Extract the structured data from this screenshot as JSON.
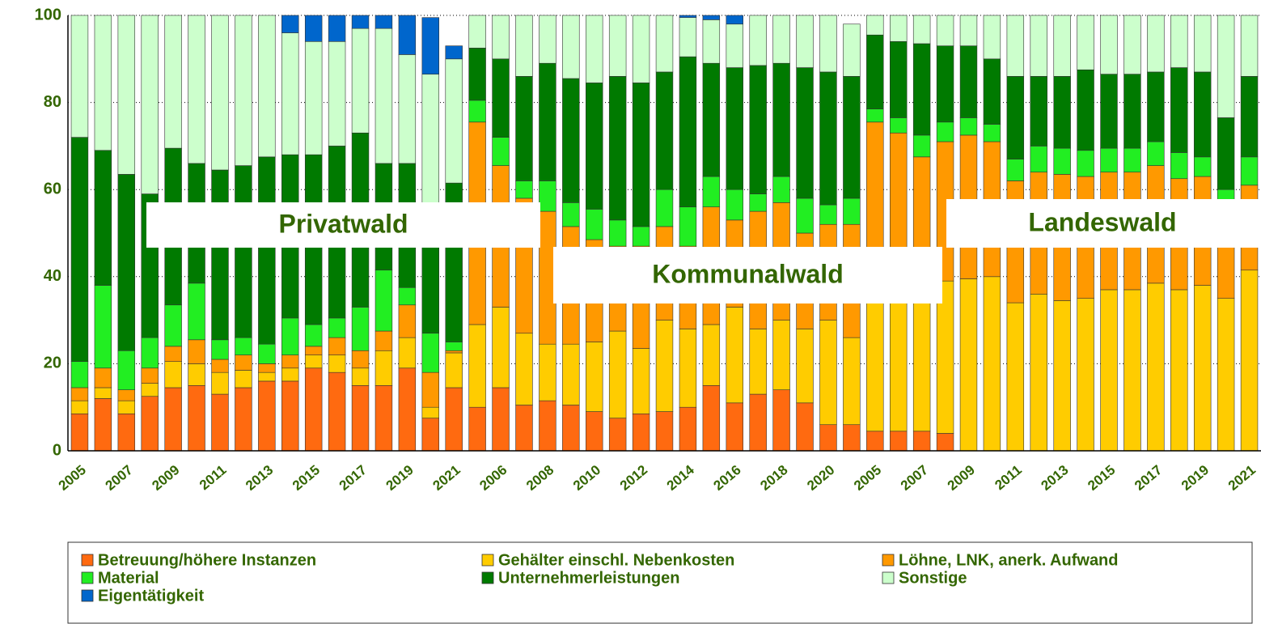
{
  "chart_data": {
    "type": "stacked_bar",
    "categories": [
      "2005",
      null,
      "2007",
      null,
      "2009",
      null,
      "2011",
      null,
      "2013",
      null,
      "2015",
      null,
      "2017",
      null,
      "2019",
      null,
      "2021",
      null,
      "2006",
      null,
      "2008",
      null,
      "2010",
      null,
      "2012",
      null,
      "2014",
      null,
      "2016",
      null,
      "2018",
      null,
      "2020",
      null,
      "2005",
      null,
      "2007",
      null,
      "2009",
      null,
      "2011",
      null,
      "2013",
      null,
      "2015",
      null,
      "2017",
      null,
      "2019",
      null,
      "2021"
    ],
    "annotations": [
      "Privatwald",
      "Kommunalwald",
      "Landeswald"
    ],
    "ylim": [
      0,
      100
    ],
    "yticks": [
      0,
      20,
      40,
      60,
      80,
      100
    ],
    "grid": true,
    "series": [
      {
        "name": "Betreuung/höhere Instanzen",
        "color": "#ff6a10",
        "values": [
          8.5,
          12,
          8.5,
          12.5,
          14.5,
          15,
          13,
          14.5,
          16,
          16,
          19,
          18,
          15,
          15,
          19,
          7.5,
          14.5,
          10,
          14.5,
          10.5,
          11.5,
          10.5,
          9,
          7.5,
          8.5,
          9,
          10,
          15,
          11,
          13,
          14,
          11,
          6,
          6,
          4.5,
          4.5,
          4.5,
          4,
          0,
          0,
          0,
          0,
          0,
          0,
          0,
          0,
          0,
          0,
          0,
          0,
          0
        ]
      },
      {
        "name": "Gehälter einschl. Nebenkosten",
        "color": "#ffcc00",
        "values": [
          3,
          2.5,
          3,
          3,
          6,
          5,
          5,
          4,
          2,
          3,
          3,
          4,
          4,
          8,
          7,
          2.5,
          8,
          19,
          18.5,
          16.5,
          13,
          14,
          16,
          20,
          15,
          21,
          18,
          14,
          22,
          15,
          16,
          17,
          24,
          20,
          33.5,
          33.5,
          33.5,
          35,
          39.5,
          40,
          34,
          36,
          34.5,
          35,
          37,
          37,
          38.5,
          37,
          38,
          35,
          41.5
        ]
      },
      {
        "name": "Löhne, LNK, anerk. Aufwand",
        "color": "#ff9900",
        "values": [
          3,
          4.5,
          2.5,
          3.5,
          3.5,
          5.5,
          3,
          3.5,
          2,
          3,
          2,
          4,
          4,
          4.5,
          7.5,
          8,
          0.5,
          46.5,
          32.5,
          31,
          30.5,
          27,
          23.5,
          19.5,
          23.5,
          21.5,
          19,
          27,
          20,
          27,
          27,
          22,
          22,
          26,
          37.5,
          35,
          29.5,
          32,
          33,
          31,
          28,
          28,
          29,
          28,
          27,
          27,
          27,
          25.5,
          25,
          22,
          19.5
        ]
      },
      {
        "name": "Material",
        "color": "#22ee22",
        "values": [
          6,
          19,
          9,
          7,
          9.5,
          13,
          4.5,
          4,
          4.5,
          8.5,
          5,
          4.5,
          10,
          14,
          4,
          9,
          2,
          5,
          6.5,
          4,
          7,
          5.5,
          7,
          6,
          4.5,
          8.5,
          9,
          7,
          7,
          4,
          6,
          8,
          4.5,
          6,
          3,
          3.5,
          5,
          4.5,
          4,
          4,
          5,
          6,
          6,
          6,
          5.5,
          5.5,
          5.5,
          6,
          4.5,
          3,
          6.5
        ]
      },
      {
        "name": "Unternehmerleistungen",
        "color": "#007a00",
        "values": [
          51.5,
          31,
          40.5,
          33,
          36,
          27.5,
          39,
          39.5,
          43,
          37.5,
          39,
          39.5,
          40,
          24.5,
          28.5,
          28,
          36.5,
          12,
          18,
          24,
          27,
          28.5,
          29,
          33,
          33,
          27,
          34.5,
          26,
          28,
          29.5,
          26,
          30,
          30.5,
          28,
          17,
          17.5,
          21,
          17.5,
          16.5,
          15,
          19,
          16,
          16.5,
          18.5,
          17,
          17,
          16,
          19.5,
          19.5,
          16.5,
          18.5
        ]
      },
      {
        "name": "Sonstige",
        "color": "#ccffcc",
        "values": [
          28,
          31,
          36.5,
          41,
          30.5,
          34,
          35.5,
          34.5,
          32.5,
          28,
          26,
          24,
          24,
          31,
          25,
          31.5,
          28.5,
          7.5,
          10,
          14,
          11,
          14.5,
          15.5,
          14,
          15.5,
          13,
          9,
          10,
          10,
          11.5,
          11,
          12,
          13,
          12,
          4.5,
          6,
          6.5,
          7,
          7,
          10,
          14,
          14,
          14,
          12.5,
          13.5,
          13.5,
          13,
          12,
          13,
          23.5,
          14
        ]
      },
      {
        "name": "Eigentätigkeit",
        "color": "#0066cc",
        "values": [
          0,
          0,
          0,
          0,
          0,
          0,
          0,
          0,
          0,
          4,
          6,
          6,
          3,
          3,
          9,
          13,
          3,
          0,
          0,
          0,
          0,
          0,
          0,
          0,
          0,
          0,
          0.5,
          1,
          2,
          0,
          0,
          0,
          0,
          0,
          0,
          0,
          0,
          0,
          0,
          0,
          0,
          0,
          0,
          0,
          0,
          0,
          0,
          0,
          0,
          0,
          0
        ]
      }
    ]
  }
}
